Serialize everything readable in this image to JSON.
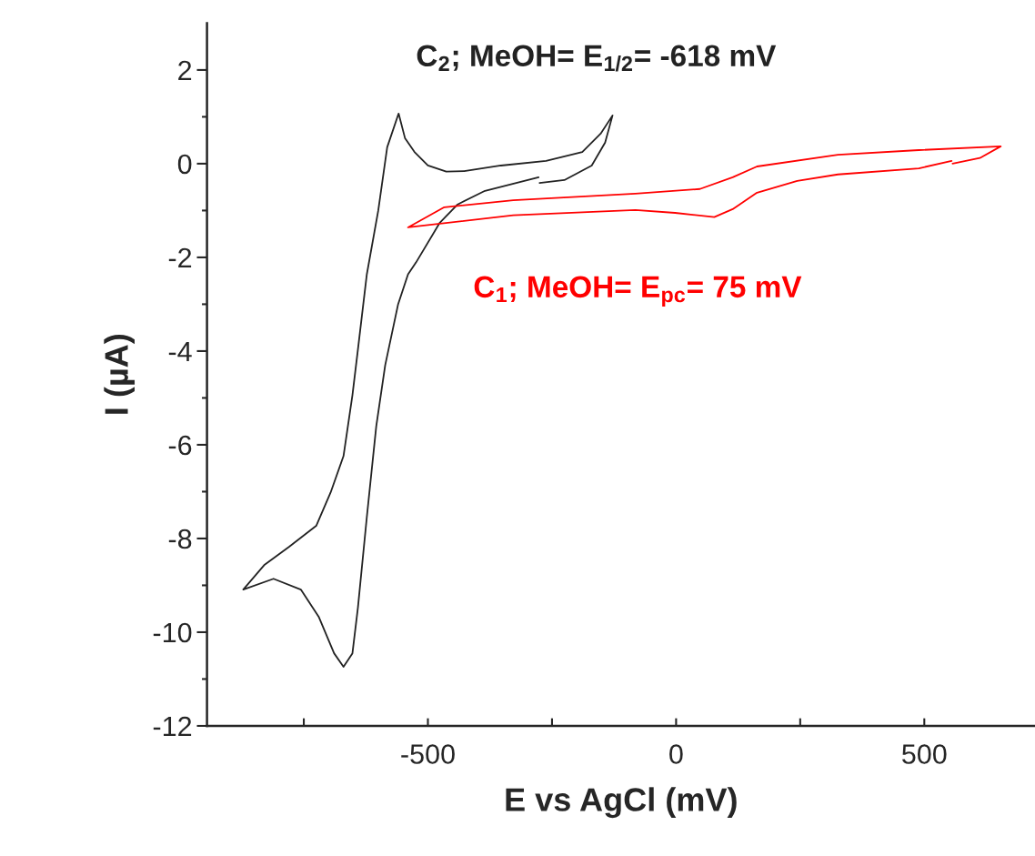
{
  "chart_data": {
    "type": "line",
    "xlabel": "E vs AgCl (mV)",
    "ylabel": "I (µA)",
    "xlim": [
      -945,
      723
    ],
    "ylim": [
      -12,
      3
    ],
    "xticks": [
      {
        "value": -750,
        "label": null
      },
      -500,
      {
        "value": -250,
        "label": null
      },
      0,
      {
        "value": 250,
        "label": null
      },
      500
    ],
    "yticks": [
      -12,
      {
        "value": -11,
        "label": null
      },
      -10,
      {
        "value": -9,
        "label": null
      },
      -8,
      {
        "value": -7,
        "label": null
      },
      -6,
      {
        "value": -5,
        "label": null
      },
      -4,
      {
        "value": -3,
        "label": null
      },
      -2,
      {
        "value": -1,
        "label": null
      },
      0,
      {
        "value": 1,
        "label": null
      },
      2
    ],
    "grid": false,
    "legend": false,
    "marker": "none",
    "line_style": "solid",
    "series": [
      {
        "name": "C$_{2}$; MeOH= E$_{1/2}$= -618 mV",
        "color": "#222222",
        "x": [
          -275,
          -225,
          -170,
          -143,
          -128,
          -152,
          -189,
          -262,
          -353,
          -427,
          -463,
          -500,
          -527,
          -546,
          -559,
          -582,
          -600,
          -623,
          -641,
          -652,
          -670,
          -696,
          -725,
          -780,
          -830,
          -872,
          -811,
          -756,
          -720,
          -689,
          -670,
          -652,
          -641,
          -623,
          -604,
          -586,
          -560,
          -540,
          -524,
          -476,
          -440,
          -385,
          -277
        ],
        "values": [
          -0.41,
          -0.35,
          -0.04,
          0.45,
          1.03,
          0.64,
          0.25,
          0.06,
          -0.04,
          -0.16,
          -0.17,
          -0.04,
          0.25,
          0.54,
          1.07,
          0.35,
          -1.0,
          -2.36,
          -3.97,
          -4.94,
          -6.24,
          -7.02,
          -7.73,
          -8.18,
          -8.57,
          -9.09,
          -8.86,
          -9.09,
          -9.67,
          -10.45,
          -10.74,
          -10.45,
          -9.48,
          -7.54,
          -5.6,
          -4.3,
          -3.0,
          -2.36,
          -2.11,
          -1.26,
          -0.87,
          -0.58,
          -0.29
        ]
      },
      {
        "name": "C$_{1}$; MeOH= E$_{pc}$= 75 mV",
        "color": "#ff0000",
        "x": [
          557,
          612,
          654,
          489,
          326,
          163,
          114,
          48,
          -82,
          -328,
          -467,
          -540,
          -328,
          -82,
          -2,
          77,
          114,
          163,
          244,
          326,
          489,
          555
        ],
        "values": [
          0.0,
          0.12,
          0.37,
          0.29,
          0.19,
          -0.06,
          -0.29,
          -0.54,
          -0.64,
          -0.78,
          -0.93,
          -1.36,
          -1.1,
          -0.99,
          -1.05,
          -1.14,
          -0.97,
          -0.62,
          -0.37,
          -0.23,
          -0.1,
          0.06
        ]
      }
    ]
  }
}
